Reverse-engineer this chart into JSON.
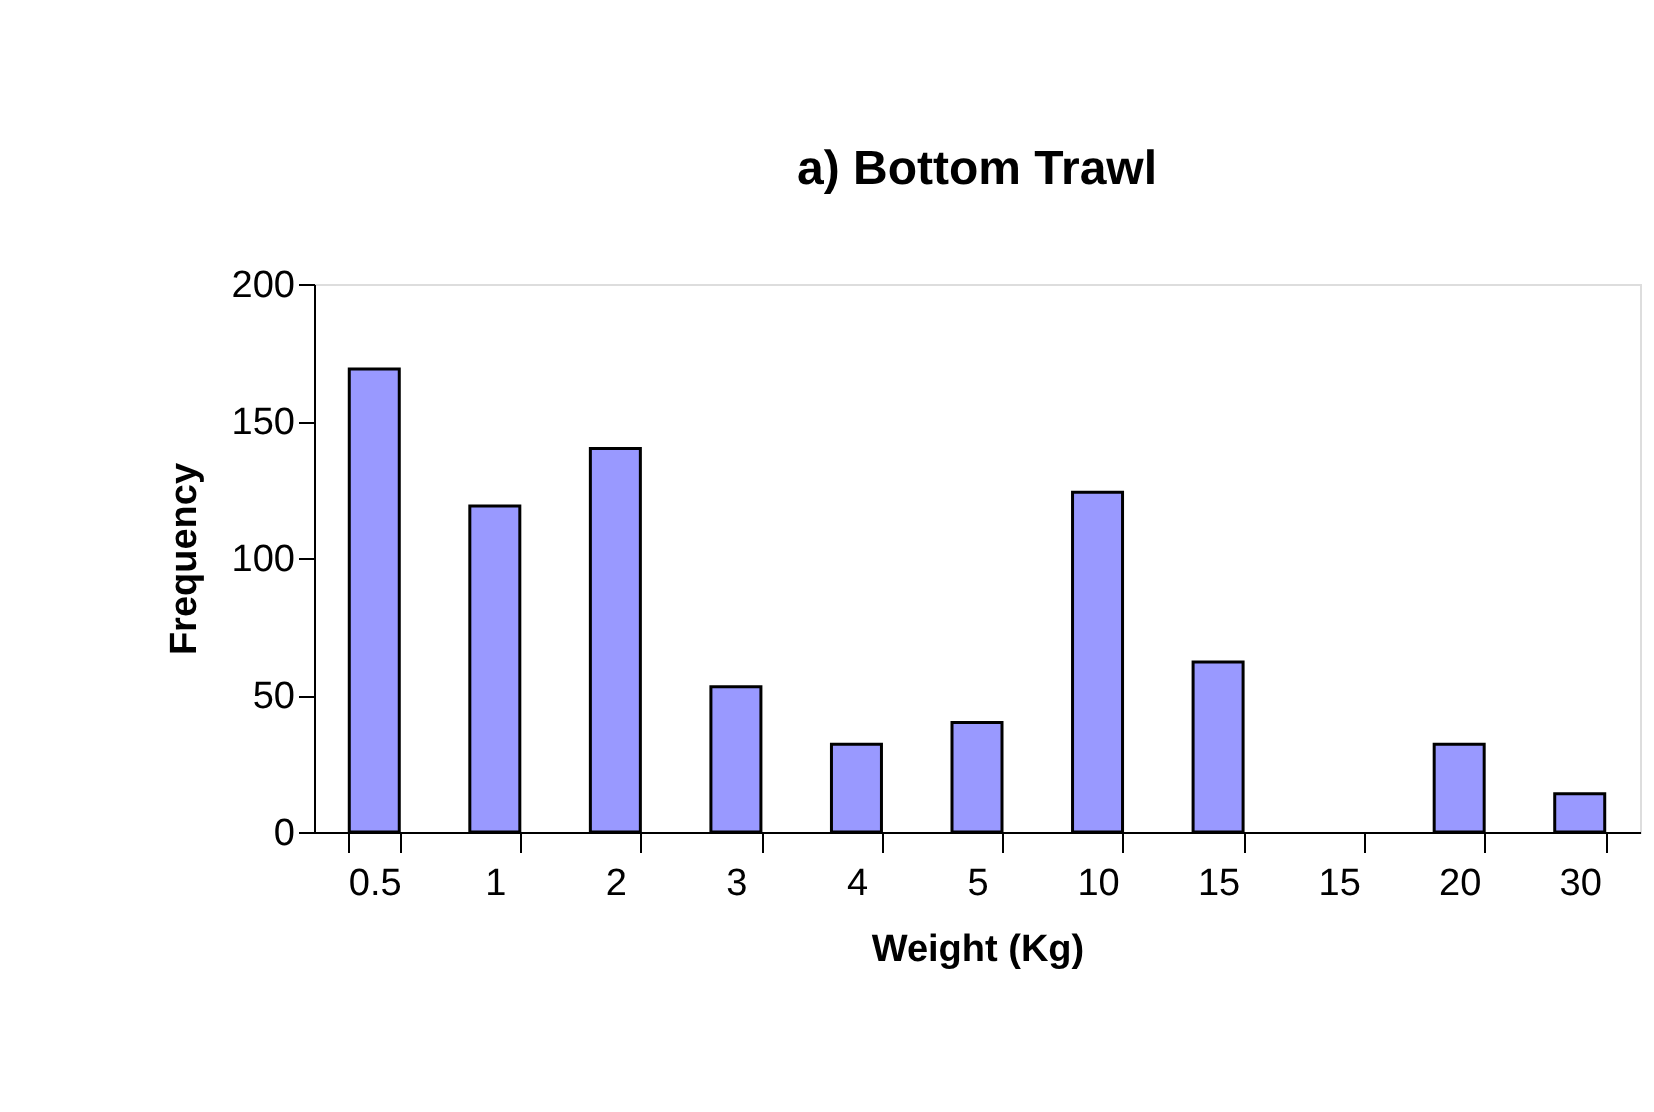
{
  "chart_data": {
    "type": "bar",
    "title": "a) Bottom Trawl",
    "xlabel": "Weight (Kg)",
    "ylabel": "Frequency",
    "categories": [
      "0.5",
      "1",
      "2",
      "3",
      "4",
      "5",
      "10",
      "15",
      "15",
      "20",
      "30"
    ],
    "values": [
      169,
      119,
      140,
      53,
      32,
      40,
      124,
      62,
      null,
      32,
      14
    ],
    "color": "#9999ff",
    "ylim": [
      0,
      200
    ],
    "yticks": [
      0,
      50,
      100,
      150,
      200
    ],
    "grid": false
  }
}
